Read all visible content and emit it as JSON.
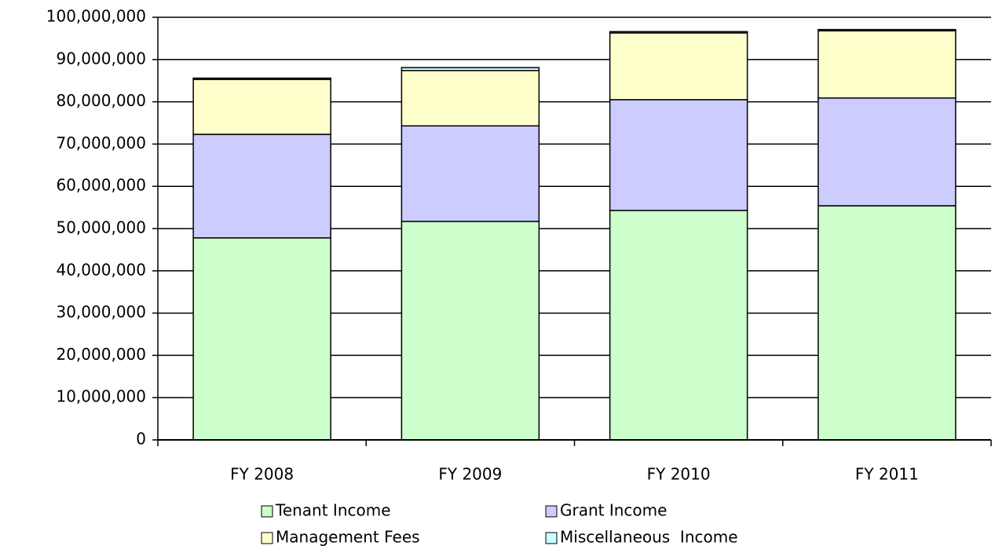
{
  "chart_data": {
    "type": "stacked_bar",
    "categories": [
      "FY 2008",
      "FY 2009",
      "FY 2010",
      "FY 2011"
    ],
    "series": [
      {
        "name": "Tenant Income",
        "color": "#ccffcc",
        "values": [
          47800000,
          51700000,
          54300000,
          55400000
        ]
      },
      {
        "name": "Grant Income",
        "color": "#ccccff",
        "values": [
          24500000,
          22600000,
          26200000,
          25500000
        ]
      },
      {
        "name": "Management Fees",
        "color": "#ffffcc",
        "values": [
          13000000,
          13100000,
          15800000,
          15900000
        ]
      },
      {
        "name": "Miscellaneous  Income",
        "color": "#ccffff",
        "values": [
          300000,
          700000,
          300000,
          300000
        ]
      }
    ],
    "ylim": [
      0,
      100000000
    ],
    "yticks": [
      0,
      {
        "value": 10000000,
        "label": "10,000,000"
      },
      {
        "value": 20000000,
        "label": "20,000,000"
      },
      {
        "value": 30000000,
        "label": "30,000,000"
      },
      {
        "value": 40000000,
        "label": "40,000,000"
      },
      {
        "value": 50000000,
        "label": "50,000,000"
      },
      {
        "value": 60000000,
        "label": "60,000,000"
      },
      {
        "value": 70000000,
        "label": "70,000,000"
      },
      {
        "value": 80000000,
        "label": "80,000,000"
      },
      {
        "value": 90000000,
        "label": "90,000,000"
      },
      {
        "value": 100000000,
        "label": "100,000,000"
      }
    ],
    "grid": true
  }
}
